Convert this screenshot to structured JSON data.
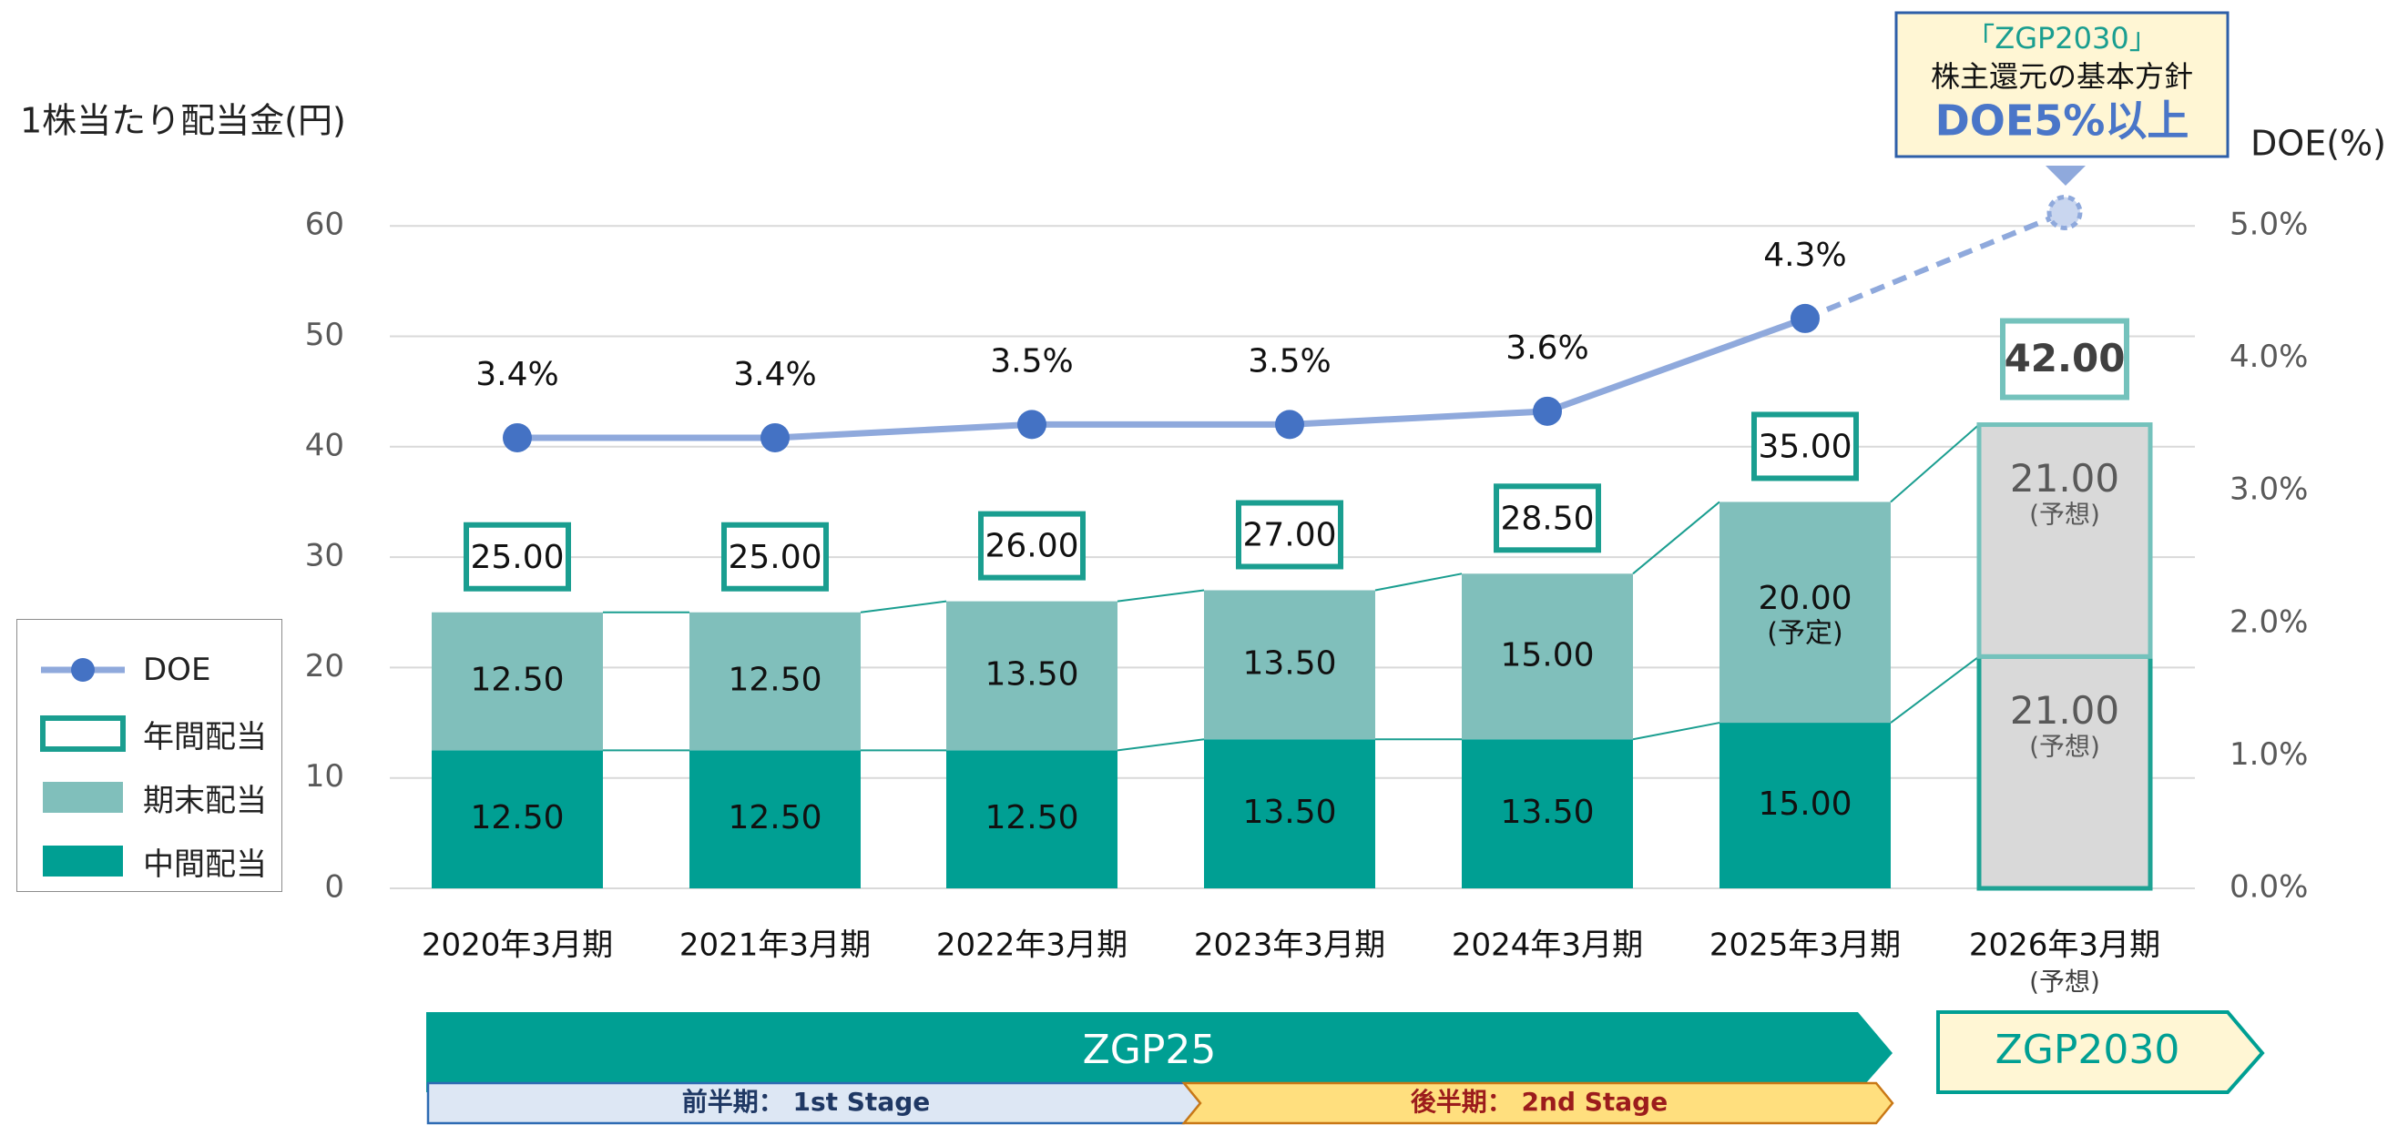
{
  "colors": {
    "interim": "#009f93",
    "final": "#80bfbb",
    "forecast_fill": "#d9d9d9",
    "forecast_border_top": "#74c2bc",
    "forecast_border_bottom": "#1ea394",
    "doe_line": "#8fa9dc",
    "doe_marker": "#4472c4",
    "total_box": "#1a9e90",
    "zgp25_arrow": "#009f93",
    "zgp2030_fill": "#fff6d4",
    "stage1_fill": "#dde7f4",
    "stage1_border": "#2e6bb3",
    "stage2_fill": "#ffdf7e",
    "stage2_border": "#c97816",
    "callout_border": "#2e5fa8",
    "callout_fill": "#fff6d4",
    "callout_doe_text": "#4a76c8"
  },
  "texts": {
    "y_left_title": "1株当たり配当金(円)",
    "y_right_title": "DOE(%)",
    "callout_line1": "「ZGP2030」",
    "callout_line2": "株主還元の基本方針",
    "callout_line3": "DOE5%以上",
    "forecast_note": "(予想)",
    "plan_note": "(予定)",
    "zgp25": "ZGP25",
    "zgp2030": "ZGP2030",
    "stage1": "前半期： 1st Stage",
    "stage2": "後半期： 2nd Stage"
  },
  "legend": {
    "doe": "DOE",
    "annual": "年間配当",
    "final": "期末配当",
    "interim": "中間配当"
  },
  "chart_data": {
    "type": "bar",
    "stacked": true,
    "categories": [
      "2020年3月期",
      "2021年3月期",
      "2022年3月期",
      "2023年3月期",
      "2024年3月期",
      "2025年3月期",
      "2026年3月期"
    ],
    "category_notes": [
      "",
      "",
      "",
      "",
      "",
      "",
      "(予想)"
    ],
    "series": [
      {
        "name": "中間配当",
        "values": [
          12.5,
          12.5,
          12.5,
          13.5,
          13.5,
          15.0,
          21.0
        ],
        "labels": [
          "12.50",
          "12.50",
          "12.50",
          "13.50",
          "13.50",
          "15.00",
          "21.00"
        ]
      },
      {
        "name": "期末配当",
        "values": [
          12.5,
          12.5,
          13.5,
          13.5,
          15.0,
          20.0,
          21.0
        ],
        "labels": [
          "12.50",
          "12.50",
          "13.50",
          "13.50",
          "15.00",
          "20.00",
          "21.00"
        ]
      }
    ],
    "annual_totals": [
      "25.00",
      "25.00",
      "26.00",
      "27.00",
      "28.50",
      "35.00",
      "42.00"
    ],
    "doe": {
      "name": "DOE",
      "values": [
        3.4,
        3.4,
        3.5,
        3.5,
        3.6,
        4.3,
        5.1
      ],
      "labels": [
        "3.4%",
        "3.4%",
        "3.5%",
        "3.5%",
        "3.6%",
        "4.3%",
        ""
      ]
    },
    "y_left": {
      "ticks": [
        "0",
        "10",
        "20",
        "30",
        "40",
        "50",
        "60"
      ],
      "range": [
        0,
        60
      ]
    },
    "y_right": {
      "ticks": [
        "0.0%",
        "1.0%",
        "2.0%",
        "3.0%",
        "4.0%",
        "5.0%"
      ],
      "range": [
        0,
        5.0
      ]
    },
    "grid": true,
    "legend_position": "left"
  }
}
